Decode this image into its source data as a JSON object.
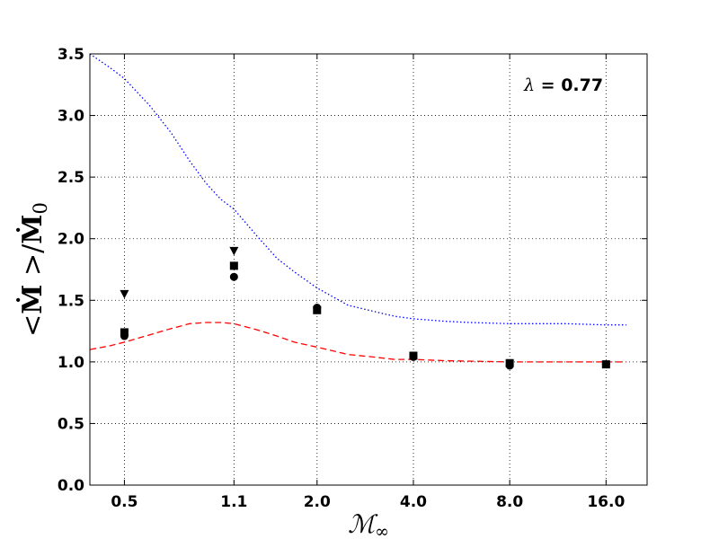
{
  "chart_data": {
    "type": "scatter",
    "xlabel": "M∞",
    "ylabel": "<Ṁ >/Ṁ0",
    "x_scale": "log",
    "x_ticks": [
      0.5,
      1.1,
      2.0,
      4.0,
      8.0,
      16.0
    ],
    "x_tick_labels": [
      "0.5",
      "1.1",
      "2.0",
      "4.0",
      "8.0",
      "16.0"
    ],
    "xlim": [
      0.39,
      21.5
    ],
    "ylim": [
      0.0,
      3.5
    ],
    "y_ticks": [
      0.0,
      0.5,
      1.0,
      1.5,
      2.0,
      2.5,
      3.0,
      3.5
    ],
    "y_tick_labels": [
      "0.0",
      "0.5",
      "1.0",
      "1.5",
      "2.0",
      "2.5",
      "3.0",
      "3.5"
    ],
    "grid": true,
    "annotation": {
      "symbol": "λ",
      "text": " = 0.77"
    },
    "series": [
      {
        "marker": "triangle-down",
        "color": "#000000",
        "points": [
          {
            "x": 0.5,
            "y": 1.55
          },
          {
            "x": 1.1,
            "y": 1.9
          }
        ]
      },
      {
        "marker": "square",
        "color": "#000000",
        "points": [
          {
            "x": 0.5,
            "y": 1.24
          },
          {
            "x": 1.1,
            "y": 1.78
          },
          {
            "x": 2.0,
            "y": 1.42
          },
          {
            "x": 4.0,
            "y": 1.05
          },
          {
            "x": 8.0,
            "y": 0.99
          },
          {
            "x": 16.0,
            "y": 0.98
          }
        ]
      },
      {
        "marker": "circle",
        "color": "#000000",
        "points": [
          {
            "x": 0.5,
            "y": 1.21
          },
          {
            "x": 1.1,
            "y": 1.69
          },
          {
            "x": 2.0,
            "y": 1.44
          },
          {
            "x": 4.0,
            "y": 1.04
          },
          {
            "x": 8.0,
            "y": 0.97
          },
          {
            "x": 16.0,
            "y": 0.98
          }
        ]
      },
      {
        "line": "dotted",
        "color": "#0000ff",
        "points": [
          {
            "x": 0.39,
            "y": 3.5
          },
          {
            "x": 0.45,
            "y": 3.39
          },
          {
            "x": 0.5,
            "y": 3.3
          },
          {
            "x": 0.6,
            "y": 3.08
          },
          {
            "x": 0.7,
            "y": 2.86
          },
          {
            "x": 0.8,
            "y": 2.63
          },
          {
            "x": 0.9,
            "y": 2.45
          },
          {
            "x": 1.0,
            "y": 2.32
          },
          {
            "x": 1.1,
            "y": 2.24
          },
          {
            "x": 1.3,
            "y": 2.02
          },
          {
            "x": 1.5,
            "y": 1.84
          },
          {
            "x": 1.7,
            "y": 1.73
          },
          {
            "x": 2.0,
            "y": 1.6
          },
          {
            "x": 2.5,
            "y": 1.46
          },
          {
            "x": 3.0,
            "y": 1.41
          },
          {
            "x": 3.5,
            "y": 1.37
          },
          {
            "x": 4.0,
            "y": 1.35
          },
          {
            "x": 5.0,
            "y": 1.33
          },
          {
            "x": 6.0,
            "y": 1.32
          },
          {
            "x": 8.0,
            "y": 1.31
          },
          {
            "x": 12.0,
            "y": 1.31
          },
          {
            "x": 16.0,
            "y": 1.3
          },
          {
            "x": 18.5,
            "y": 1.3
          }
        ]
      },
      {
        "line": "dashed",
        "color": "#ff0000",
        "points": [
          {
            "x": 0.39,
            "y": 1.1
          },
          {
            "x": 0.45,
            "y": 1.13
          },
          {
            "x": 0.5,
            "y": 1.16
          },
          {
            "x": 0.6,
            "y": 1.22
          },
          {
            "x": 0.7,
            "y": 1.27
          },
          {
            "x": 0.8,
            "y": 1.31
          },
          {
            "x": 0.9,
            "y": 1.32
          },
          {
            "x": 1.0,
            "y": 1.32
          },
          {
            "x": 1.1,
            "y": 1.31
          },
          {
            "x": 1.3,
            "y": 1.26
          },
          {
            "x": 1.5,
            "y": 1.21
          },
          {
            "x": 1.7,
            "y": 1.16
          },
          {
            "x": 2.0,
            "y": 1.12
          },
          {
            "x": 2.5,
            "y": 1.06
          },
          {
            "x": 3.0,
            "y": 1.04
          },
          {
            "x": 3.5,
            "y": 1.02
          },
          {
            "x": 4.0,
            "y": 1.02
          },
          {
            "x": 5.0,
            "y": 1.01
          },
          {
            "x": 8.0,
            "y": 1.0
          },
          {
            "x": 12.0,
            "y": 1.0
          },
          {
            "x": 16.0,
            "y": 1.0
          },
          {
            "x": 18.5,
            "y": 1.0
          }
        ]
      }
    ]
  }
}
